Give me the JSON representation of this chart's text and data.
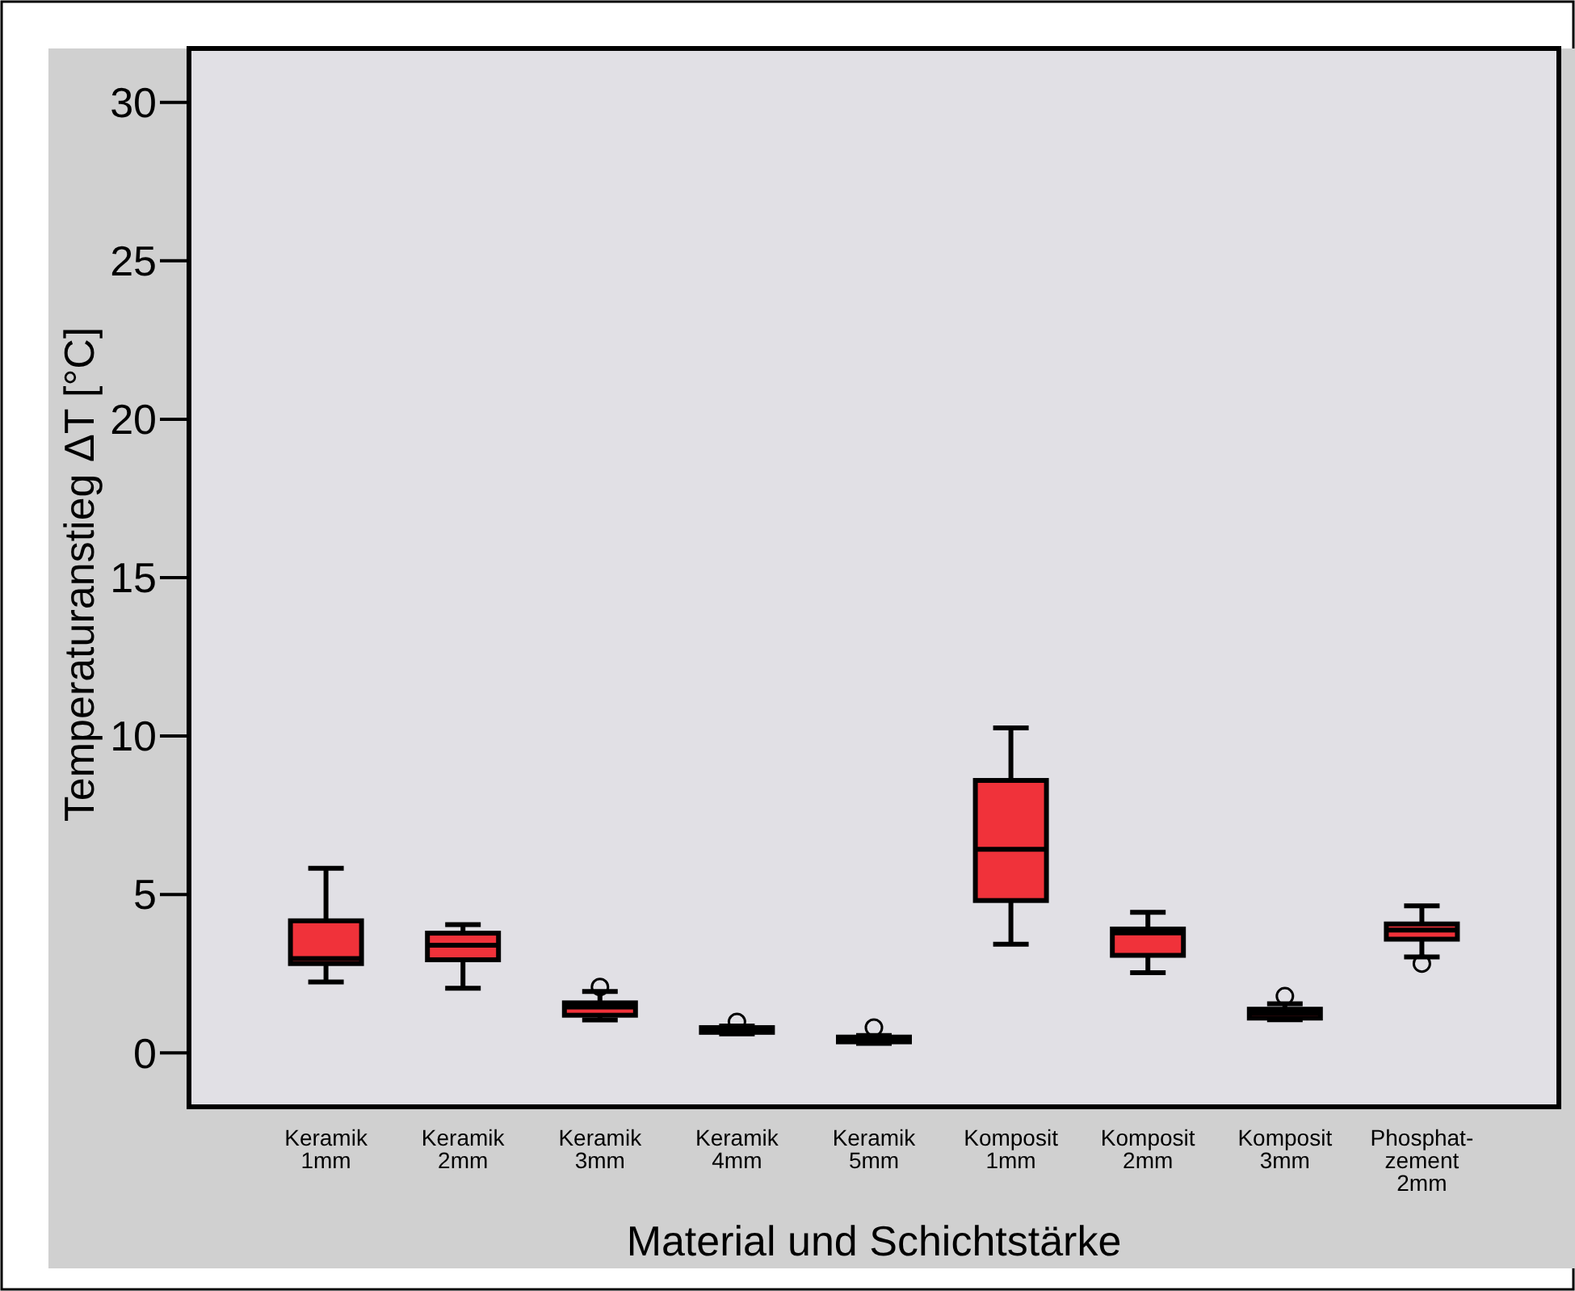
{
  "chart_data": {
    "type": "box",
    "xlabel": "Material und Schichtstärke",
    "ylabel": "Temperaturanstieg ΔT [°C]",
    "categories": [
      "Keramik\n1mm",
      "Keramik\n2mm",
      "Keramik\n3mm",
      "Keramik\n4mm",
      "Keramik\n5mm",
      "Komposit\n1mm",
      "Komposit\n2mm",
      "Komposit\n3mm",
      "Phosphat-\nzement\n2mm"
    ],
    "color": "#f0323a",
    "boxes": [
      {
        "low": 2.24,
        "q1": 2.82,
        "median": 2.98,
        "q3": 4.17,
        "high": 5.83
      },
      {
        "low": 2.04,
        "q1": 2.94,
        "median": 3.4,
        "q3": 3.78,
        "high": 4.05
      },
      {
        "low": 1.04,
        "q1": 1.19,
        "median": 1.45,
        "q3": 1.58,
        "high": 1.94,
        "outliers": [
          2.08
        ]
      },
      {
        "low": 0.6,
        "q1": 0.65,
        "median": 0.75,
        "q3": 0.8,
        "high": 0.85,
        "outliers": [
          0.98
        ]
      },
      {
        "low": 0.3,
        "q1": 0.35,
        "median": 0.45,
        "q3": 0.5,
        "high": 0.55,
        "outliers": [
          0.8
        ]
      },
      {
        "low": 3.43,
        "q1": 4.81,
        "median": 6.43,
        "q3": 8.6,
        "high": 10.26
      },
      {
        "low": 2.53,
        "q1": 3.08,
        "median": 3.79,
        "q3": 3.91,
        "high": 4.44
      },
      {
        "low": 1.05,
        "q1": 1.1,
        "median": 1.25,
        "q3": 1.38,
        "high": 1.55,
        "outliers": [
          1.79
        ]
      },
      {
        "low": 3.03,
        "q1": 3.59,
        "median": 3.88,
        "q3": 4.07,
        "high": 4.64,
        "outliers": [
          2.82
        ]
      }
    ],
    "ylim": [
      -1.7,
      31.7
    ],
    "yticks": [
      0,
      5,
      10,
      15,
      20,
      25,
      30
    ],
    "grid": false
  }
}
